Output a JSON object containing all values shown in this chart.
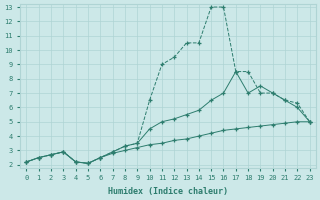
{
  "xlabel": "Humidex (Indice chaleur)",
  "x": [
    0,
    1,
    2,
    3,
    4,
    5,
    6,
    7,
    8,
    9,
    10,
    11,
    12,
    13,
    14,
    15,
    16,
    17,
    18,
    19,
    20,
    21,
    22,
    23
  ],
  "line_min": [
    2.2,
    2.5,
    2.7,
    2.9,
    2.2,
    2.1,
    2.5,
    2.8,
    3.0,
    3.2,
    3.4,
    3.5,
    3.7,
    3.8,
    4.0,
    4.2,
    4.4,
    4.5,
    4.6,
    4.7,
    4.8,
    4.9,
    5.0,
    5.0
  ],
  "line_mid": [
    2.2,
    2.5,
    2.7,
    2.9,
    2.2,
    2.1,
    2.5,
    2.9,
    3.3,
    3.5,
    4.5,
    5.0,
    5.2,
    5.5,
    5.8,
    6.5,
    7.0,
    8.5,
    7.0,
    7.5,
    7.0,
    6.5,
    6.0,
    5.0
  ],
  "line_max": [
    2.2,
    2.5,
    2.7,
    2.9,
    2.2,
    2.1,
    2.5,
    2.9,
    3.3,
    3.5,
    6.5,
    9.0,
    9.5,
    10.5,
    10.5,
    13.0,
    13.0,
    8.5,
    8.5,
    7.0,
    7.0,
    6.5,
    6.3,
    5.0
  ],
  "color": "#2d7d6e",
  "bg_color": "#cce8e8",
  "grid_color": "#afd4d4",
  "ylim": [
    2,
    13
  ],
  "xlim": [
    0,
    23
  ],
  "yticks": [
    2,
    3,
    4,
    5,
    6,
    7,
    8,
    9,
    10,
    11,
    12,
    13
  ],
  "xticks": [
    0,
    1,
    2,
    3,
    4,
    5,
    6,
    7,
    8,
    9,
    10,
    11,
    12,
    13,
    14,
    15,
    16,
    17,
    18,
    19,
    20,
    21,
    22,
    23
  ]
}
